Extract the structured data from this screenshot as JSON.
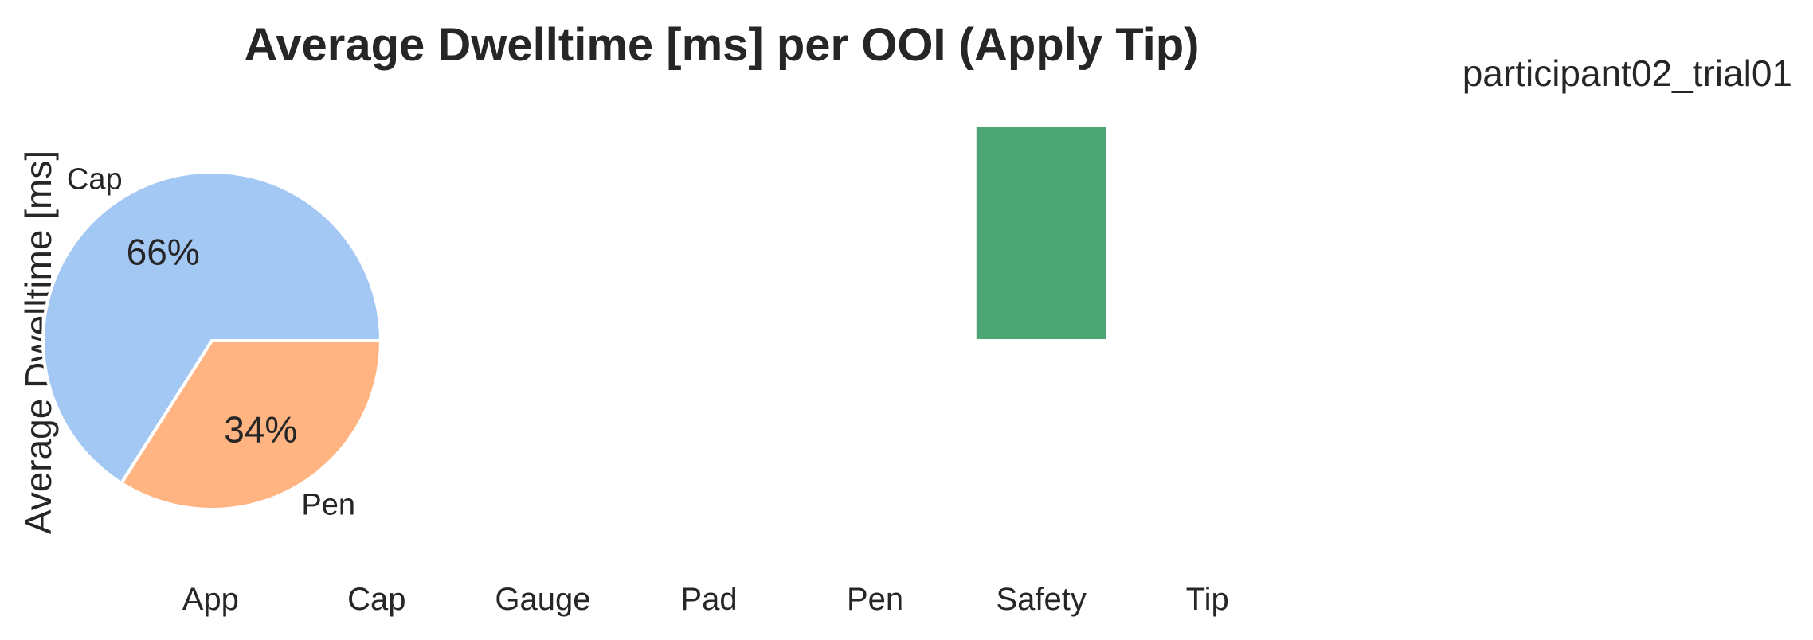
{
  "title": "Average Dwelltime [ms] per OOI (Apply Tip)",
  "subtitle": "participant02_trial01",
  "chart_data": [
    {
      "type": "bar",
      "ylabel": "Average Dwelltime [ms]",
      "categories": [
        "App",
        "Cap",
        "Gauge",
        "Pad",
        "Pen",
        "Safety",
        "Tip"
      ],
      "values": [
        0,
        0,
        0,
        0,
        0,
        1,
        0
      ],
      "ylim": [
        0,
        1
      ],
      "grid": false,
      "colors": {
        "Safety": "#4ca574"
      }
    },
    {
      "type": "pie",
      "slices": [
        {
          "label": "Cap",
          "value": 66,
          "pct_label": "66%",
          "color": "#a3c8f4"
        },
        {
          "label": "Pen",
          "value": 34,
          "pct_label": "34%",
          "color": "#ffb482"
        }
      ],
      "start_angle": 0,
      "direction": "counterclockwise"
    }
  ]
}
